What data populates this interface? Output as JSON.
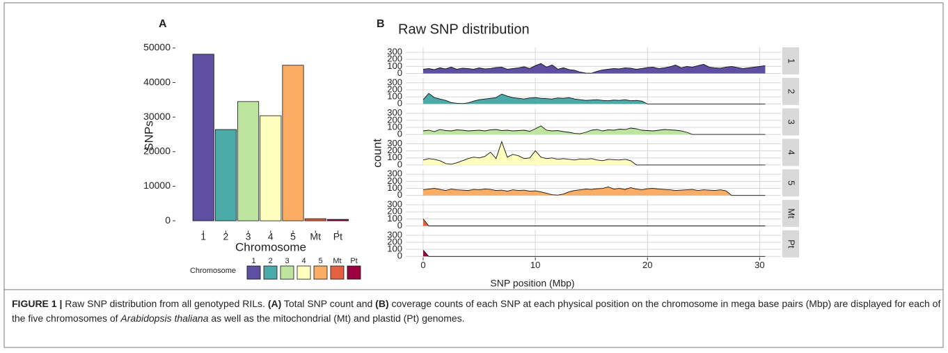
{
  "chart_data": [
    {
      "type": "bar",
      "panel_label": "A",
      "categories": [
        "1",
        "2",
        "3",
        "4",
        "5",
        "Mt",
        "Pt"
      ],
      "values": [
        48200,
        26400,
        34500,
        30400,
        45000,
        600,
        400
      ],
      "colors": [
        "#5e4fa2",
        "#4aaba9",
        "#bee5a0",
        "#fefebd",
        "#fbad63",
        "#e4603f",
        "#9e0142"
      ],
      "ylim": [
        -2600,
        52400
      ],
      "yticks": [
        0,
        10000,
        20000,
        30000,
        40000,
        50000
      ],
      "x_label": "Chromosome",
      "y_label": "SNPs",
      "legend": {
        "title": "Chromosome",
        "position": "bottom"
      }
    },
    {
      "type": "area",
      "panel_label": "B",
      "title": "Raw SNP distribution",
      "x": [
        0,
        0.5,
        1,
        1.5,
        2,
        2.5,
        3,
        3.5,
        4,
        4.5,
        5,
        5.5,
        6,
        6.5,
        7,
        7.5,
        8,
        8.5,
        9,
        9.5,
        10,
        10.5,
        11,
        11.5,
        12,
        12.5,
        13,
        13.5,
        14,
        14.5,
        15,
        15.5,
        16,
        16.5,
        17,
        17.5,
        18,
        18.5,
        19,
        19.5,
        20,
        20.5,
        21,
        21.5,
        22,
        22.5,
        23,
        23.5,
        24,
        24.5,
        25,
        25.5,
        26,
        26.5,
        27,
        27.5,
        28,
        28.5,
        29,
        29.5,
        30,
        30.5
      ],
      "series": [
        {
          "name": "1",
          "color": "#5e4fa2",
          "values": [
            60,
            70,
            55,
            80,
            65,
            90,
            60,
            75,
            70,
            60,
            80,
            65,
            70,
            85,
            90,
            60,
            70,
            80,
            95,
            70,
            110,
            140,
            90,
            120,
            60,
            80,
            55,
            45,
            20,
            5,
            3,
            30,
            50,
            60,
            70,
            65,
            80,
            75,
            60,
            70,
            85,
            90,
            70,
            80,
            95,
            120,
            80,
            100,
            90,
            110,
            130,
            90,
            80,
            75,
            90,
            100,
            85,
            70,
            80,
            90,
            100,
            110
          ]
        },
        {
          "name": "2",
          "color": "#4aaba9",
          "values": [
            60,
            150,
            90,
            70,
            50,
            20,
            10,
            5,
            15,
            40,
            60,
            70,
            80,
            90,
            140,
            110,
            90,
            80,
            70,
            85,
            90,
            80,
            75,
            70,
            85,
            80,
            90,
            70,
            60,
            50,
            55,
            60,
            50,
            45,
            55,
            50,
            60,
            45,
            50,
            40,
            0,
            0,
            0,
            0,
            0,
            0,
            0,
            0,
            0,
            0,
            0,
            0,
            0,
            0,
            0,
            0,
            0,
            0,
            0,
            0,
            0,
            0
          ]
        },
        {
          "name": "3",
          "color": "#bee5a0",
          "values": [
            50,
            60,
            40,
            70,
            55,
            50,
            65,
            60,
            50,
            55,
            60,
            50,
            65,
            70,
            55,
            60,
            50,
            55,
            60,
            45,
            80,
            120,
            60,
            50,
            55,
            40,
            30,
            15,
            10,
            30,
            60,
            70,
            50,
            65,
            60,
            75,
            70,
            90,
            80,
            60,
            55,
            50,
            60,
            70,
            65,
            60,
            50,
            30,
            0,
            0,
            0,
            0,
            0,
            0,
            0,
            0,
            0,
            0,
            0,
            0,
            0,
            0
          ]
        },
        {
          "name": "4",
          "color": "#fefebd",
          "values": [
            70,
            90,
            80,
            60,
            20,
            10,
            30,
            60,
            90,
            110,
            100,
            120,
            180,
            90,
            330,
            110,
            150,
            130,
            90,
            100,
            200,
            110,
            90,
            100,
            80,
            90,
            80,
            70,
            85,
            80,
            90,
            70,
            60,
            80,
            75,
            70,
            80,
            60,
            0,
            0,
            0,
            0,
            0,
            0,
            0,
            0,
            0,
            0,
            0,
            0,
            0,
            0,
            0,
            0,
            0,
            0,
            0,
            0,
            0,
            0,
            0,
            0
          ]
        },
        {
          "name": "5",
          "color": "#fbad63",
          "values": [
            80,
            90,
            100,
            85,
            70,
            90,
            80,
            75,
            70,
            85,
            80,
            90,
            85,
            70,
            75,
            60,
            80,
            70,
            75,
            60,
            65,
            50,
            30,
            10,
            5,
            20,
            50,
            70,
            80,
            90,
            85,
            95,
            100,
            120,
            90,
            100,
            85,
            110,
            90,
            80,
            95,
            100,
            90,
            85,
            80,
            70,
            75,
            80,
            85,
            70,
            80,
            75,
            70,
            80,
            65,
            0,
            0,
            0,
            0,
            0,
            0,
            0
          ]
        },
        {
          "name": "Mt",
          "color": "#e4603f",
          "values": [
            100,
            0,
            0,
            0,
            0,
            0,
            0,
            0,
            0,
            0,
            0,
            0,
            0,
            0,
            0,
            0,
            0,
            0,
            0,
            0,
            0,
            0,
            0,
            0,
            0,
            0,
            0,
            0,
            0,
            0,
            0,
            0,
            0,
            0,
            0,
            0,
            0,
            0,
            0,
            0,
            0,
            0,
            0,
            0,
            0,
            0,
            0,
            0,
            0,
            0,
            0,
            0,
            0,
            0,
            0,
            0,
            0,
            0,
            0,
            0,
            0,
            0
          ]
        },
        {
          "name": "Pt",
          "color": "#9e0142",
          "values": [
            90,
            0,
            0,
            0,
            0,
            0,
            0,
            0,
            0,
            0,
            0,
            0,
            0,
            0,
            0,
            0,
            0,
            0,
            0,
            0,
            0,
            0,
            0,
            0,
            0,
            0,
            0,
            0,
            0,
            0,
            0,
            0,
            0,
            0,
            0,
            0,
            0,
            0,
            0,
            0,
            0,
            0,
            0,
            0,
            0,
            0,
            0,
            0,
            0,
            0,
            0,
            0,
            0,
            0,
            0,
            0,
            0,
            0,
            0,
            0,
            0,
            0
          ]
        }
      ],
      "xlim": [
        -1.55,
        31.9
      ],
      "xticks": [
        0,
        10,
        20,
        30
      ],
      "ylim": [
        -15,
        370
      ],
      "yticks": [
        0,
        100,
        200,
        300
      ],
      "x_label": "SNP position (Mbp)",
      "y_label": "count",
      "grid": true
    }
  ],
  "caption": {
    "parts": [
      "FIGURE 1 | ",
      "Raw SNP distribution from all genotyped RILs. ",
      "(A)",
      " Total SNP count and ",
      "(B)",
      " coverage counts of each SNP at each physical position on the chromosome in mega base pairs (Mbp) are displayed for each of the five chromosomes of ",
      "Arabidopsis thaliana",
      " as well as the mitochondrial (Mt) and plastid (Pt) genomes."
    ]
  }
}
